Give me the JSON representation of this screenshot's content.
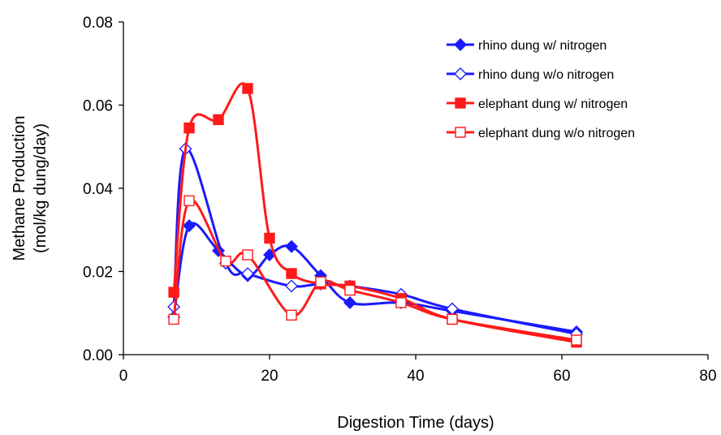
{
  "chart_data": {
    "type": "line",
    "title": "",
    "xlabel": "Digestion Time (days)",
    "ylabel_lines": [
      "Methane Production",
      "(mol/kg dung/day)"
    ],
    "xlim": [
      0,
      80
    ],
    "ylim": [
      0,
      0.08
    ],
    "xticks": [
      "0",
      "20",
      "40",
      "60",
      "80"
    ],
    "yticks": [
      "0.00",
      "0.02",
      "0.04",
      "0.06",
      "0.08"
    ],
    "grid": false,
    "legend_position": "top-right",
    "series": [
      {
        "name": "rhino dung w/ nitrogen",
        "color": "#1a1aff",
        "marker": "diamond-filled",
        "points": [
          [
            6.9,
            0.009
          ],
          [
            9,
            0.031
          ],
          [
            13,
            0.025
          ],
          [
            17,
            0.019
          ],
          [
            20,
            0.024
          ],
          [
            23,
            0.026
          ],
          [
            27,
            0.019
          ],
          [
            31,
            0.0125
          ],
          [
            38,
            0.0125
          ],
          [
            45,
            0.0105
          ],
          [
            62,
            0.0055
          ]
        ]
      },
      {
        "name": "rhino dung w/o nitrogen",
        "color": "#1a1aff",
        "marker": "diamond-open",
        "points": [
          [
            6.9,
            0.0115
          ],
          [
            8.5,
            0.0495
          ],
          [
            14,
            0.022
          ],
          [
            17,
            0.0195
          ],
          [
            23,
            0.0165
          ],
          [
            27,
            0.017
          ],
          [
            31,
            0.0165
          ],
          [
            38,
            0.0145
          ],
          [
            45,
            0.011
          ],
          [
            62,
            0.005
          ]
        ]
      },
      {
        "name": "elephant dung w/ nitrogen",
        "color": "#ff1a1a",
        "marker": "square-filled",
        "points": [
          [
            6.9,
            0.015
          ],
          [
            9,
            0.0545
          ],
          [
            13,
            0.0565
          ],
          [
            17,
            0.064
          ],
          [
            20,
            0.028
          ],
          [
            23,
            0.0195
          ],
          [
            27,
            0.017
          ],
          [
            31,
            0.0165
          ],
          [
            38,
            0.0135
          ],
          [
            45,
            0.0085
          ],
          [
            62,
            0.003
          ]
        ]
      },
      {
        "name": "elephant dung w/o nitrogen",
        "color": "#ff1a1a",
        "marker": "square-open",
        "points": [
          [
            6.9,
            0.0085
          ],
          [
            9,
            0.037
          ],
          [
            14,
            0.0225
          ],
          [
            17,
            0.024
          ],
          [
            23,
            0.0095
          ],
          [
            27,
            0.0175
          ],
          [
            31,
            0.0155
          ],
          [
            38,
            0.0125
          ],
          [
            45,
            0.0085
          ],
          [
            62,
            0.0035
          ]
        ]
      }
    ]
  }
}
